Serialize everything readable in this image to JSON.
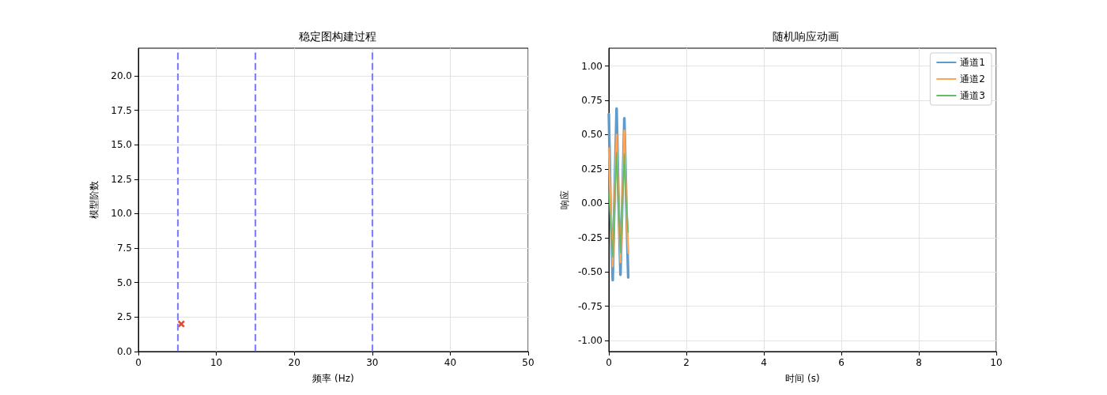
{
  "chart_data": [
    {
      "type": "scatter",
      "title": "稳定图构建过程",
      "xlabel": "频率 (Hz)",
      "ylabel": "模型阶数",
      "series": [
        {
          "color": "#cc2200",
          "marker": "cross",
          "x": [
            5.5
          ],
          "values": [
            2
          ]
        }
      ],
      "xlim": [
        0,
        50
      ],
      "xticks": [
        0,
        10,
        20,
        30,
        40,
        50
      ],
      "ylim": [
        0,
        22
      ],
      "yticks": [
        {
          "value": 0,
          "label": "0.0"
        },
        {
          "value": 2.5,
          "label": "2.5"
        },
        {
          "value": 5,
          "label": "5.0"
        },
        {
          "value": 7.5,
          "label": "7.5"
        },
        {
          "value": 10,
          "label": "10.0"
        },
        {
          "value": 12.5,
          "label": "12.5"
        },
        {
          "value": 15,
          "label": "15.0"
        },
        {
          "value": 17.5,
          "label": "17.5"
        },
        {
          "value": 20,
          "label": "20.0"
        }
      ],
      "ref_lines": [
        {
          "axis": "x",
          "value": 5,
          "color": "#8080ff",
          "line_style": "dashed"
        },
        {
          "axis": "x",
          "value": 15,
          "color": "#8080ff",
          "line_style": "dashed"
        },
        {
          "axis": "x",
          "value": 30,
          "color": "#8080ff",
          "line_style": "dashed"
        }
      ],
      "grid": true,
      "legend": false
    },
    {
      "type": "line",
      "title": "随机响应动画",
      "xlabel": "时间 (s)",
      "ylabel": "响应",
      "marker": "none",
      "line_style": "solid",
      "x": [
        0,
        0.05,
        0.1,
        0.15,
        0.2,
        0.25,
        0.3,
        0.35,
        0.4,
        0.45,
        0.5
      ],
      "series": [
        {
          "name": "通道1",
          "color": "#5f9ccb",
          "values": [
            0.65,
            -0.1,
            -0.56,
            0.1,
            0.69,
            0.0,
            -0.52,
            0.05,
            0.62,
            0.0,
            -0.54
          ]
        },
        {
          "name": "通道2",
          "color": "#ffa556",
          "values": [
            0.4,
            -0.05,
            -0.46,
            0.05,
            0.5,
            0.0,
            -0.43,
            0.05,
            0.53,
            0.0,
            -0.36
          ]
        },
        {
          "name": "通道3",
          "color": "#63bb63",
          "values": [
            0.08,
            -0.15,
            -0.39,
            0.0,
            0.37,
            0.0,
            -0.36,
            0.0,
            0.36,
            0.0,
            -0.21
          ]
        }
      ],
      "xlim": [
        0,
        10
      ],
      "xticks": [
        0,
        2,
        4,
        6,
        8,
        10
      ],
      "ylim": [
        -1.08,
        1.13
      ],
      "yticks": [
        {
          "value": -1,
          "label": "-1.00"
        },
        {
          "value": -0.75,
          "label": "-0.75"
        },
        {
          "value": -0.5,
          "label": "-0.50"
        },
        {
          "value": -0.25,
          "label": "-0.25"
        },
        {
          "value": 0,
          "label": "0.00"
        },
        {
          "value": 0.25,
          "label": "0.25"
        },
        {
          "value": 0.5,
          "label": "0.50"
        },
        {
          "value": 0.75,
          "label": "0.75"
        },
        {
          "value": 1,
          "label": "1.00"
        }
      ],
      "grid": true,
      "legend": "top right"
    }
  ]
}
